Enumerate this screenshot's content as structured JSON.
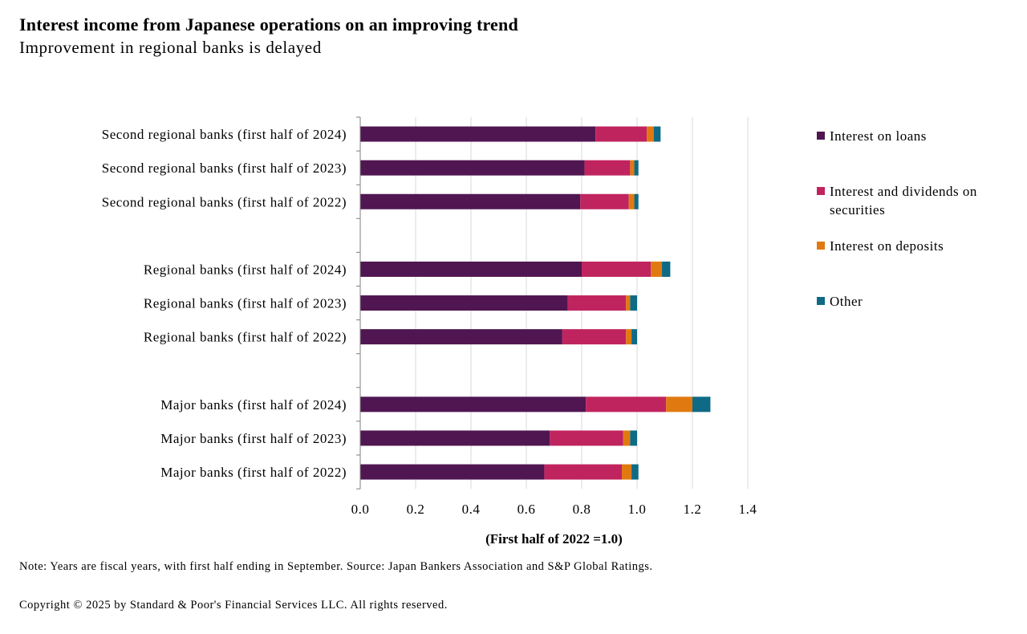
{
  "header": {
    "title": "Interest income from Japanese operations on an improving trend",
    "subtitle": "Improvement in regional banks is delayed"
  },
  "footer": {
    "note": "Note: Years are fiscal years, with first half ending in September. Source: Japan Bankers Association and S&P Global Ratings.",
    "copyright": "Copyright © 2025 by Standard & Poor's Financial Services LLC. All rights reserved."
  },
  "chart_data": {
    "type": "bar",
    "orientation": "horizontal",
    "stacked": true,
    "xlabel": "(First half of 2022 =1.0)",
    "xlim": [
      0,
      1.4
    ],
    "xticks": [
      "0.0",
      "0.2",
      "0.4",
      "0.6",
      "0.8",
      "1.0",
      "1.2",
      "1.4"
    ],
    "grid": true,
    "legend_position": "right",
    "categories": [
      "Second regional banks (first half of 2024)",
      "Second regional banks (first half of 2023)",
      "Second regional banks (first half of 2022)",
      "",
      "Regional banks (first half of 2024)",
      "Regional banks (first half of 2023)",
      "Regional banks (first half of 2022)",
      "",
      "Major banks (first half of 2024)",
      "Major banks (first half of 2023)",
      "Major banks (first half of 2022)"
    ],
    "series": [
      {
        "name": "Interest on loans",
        "color": "#501652",
        "values": [
          0.85,
          0.81,
          0.795,
          null,
          0.8,
          0.75,
          0.73,
          null,
          0.815,
          0.685,
          0.665
        ]
      },
      {
        "name": "Interest and dividends on securities",
        "color": "#c0245e",
        "values": [
          0.185,
          0.165,
          0.175,
          null,
          0.25,
          0.21,
          0.23,
          null,
          0.29,
          0.265,
          0.28
        ]
      },
      {
        "name": "Interest on deposits",
        "color": "#e07a10",
        "values": [
          0.025,
          0.015,
          0.02,
          null,
          0.04,
          0.015,
          0.02,
          null,
          0.095,
          0.025,
          0.035
        ]
      },
      {
        "name": "Other",
        "color": "#0f6a86",
        "values": [
          0.025,
          0.015,
          0.015,
          null,
          0.03,
          0.025,
          0.02,
          null,
          0.065,
          0.025,
          0.025
        ]
      }
    ]
  }
}
